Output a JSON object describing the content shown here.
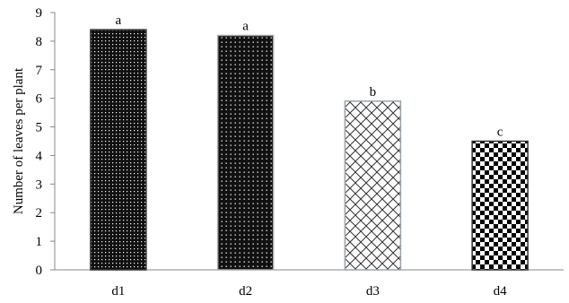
{
  "chart_data": {
    "type": "bar",
    "categories": [
      "d1",
      "d2",
      "d3",
      "d4"
    ],
    "values": [
      8.4,
      8.2,
      5.9,
      4.5
    ],
    "data_labels": [
      "a",
      "a",
      "b",
      "c"
    ],
    "bar_patterns": [
      "dense-dots",
      "dots",
      "diagonal-lattice",
      "checkerboard"
    ],
    "ylabel": "Number of leaves  per plant",
    "xlabel": "",
    "ylim": [
      0,
      9
    ],
    "yticks": [
      "0",
      "1",
      "2",
      "3",
      "4",
      "5",
      "6",
      "7",
      "8",
      "9"
    ],
    "grid": false,
    "legend": "none"
  }
}
